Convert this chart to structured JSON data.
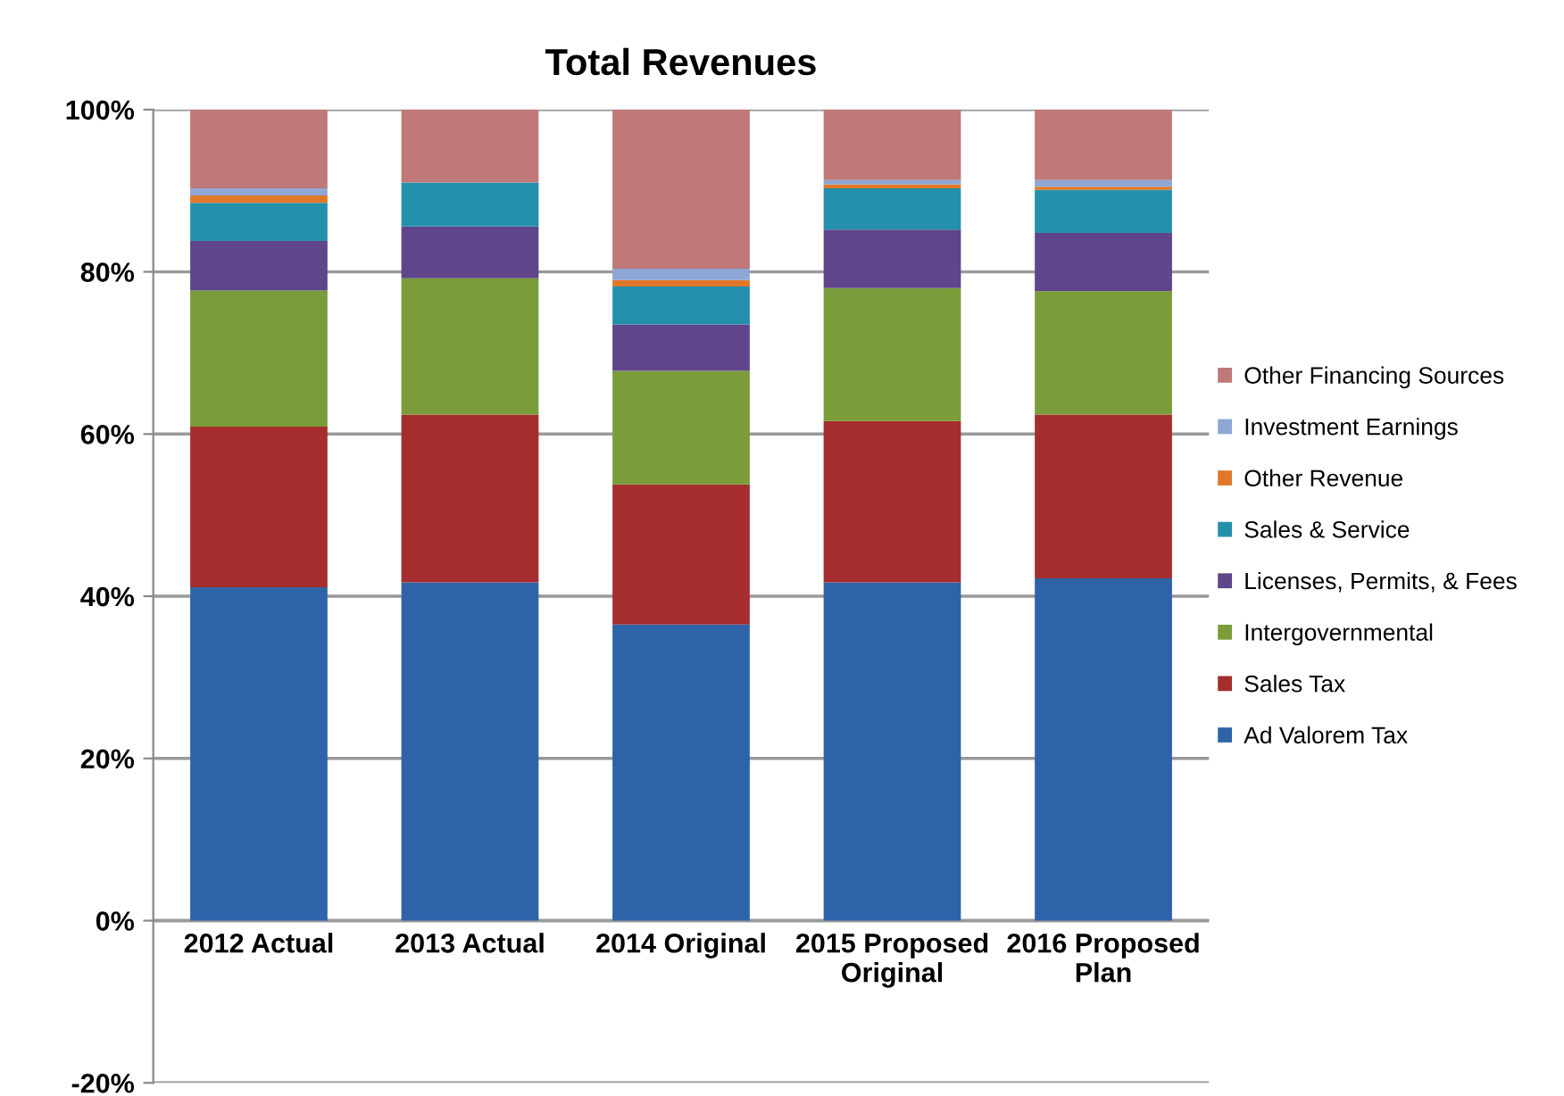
{
  "chart_data": {
    "type": "bar",
    "title": "Total Revenues",
    "stacked": true,
    "categories": [
      "2012 Actual",
      "2013 Actual",
      "2014 Original",
      "2015 Proposed\nOriginal",
      "2016 Proposed\nPlan"
    ],
    "series": [
      {
        "name": "Ad Valorem Tax",
        "color": "#2f63a8",
        "values": [
          41.1,
          41.7,
          36.5,
          41.7,
          42.2
        ]
      },
      {
        "name": "Sales Tax",
        "color": "#a52d2d",
        "values": [
          19.8,
          20.7,
          17.3,
          19.9,
          20.2
        ]
      },
      {
        "name": "Intergovernmental",
        "color": "#7a9c3a",
        "values": [
          16.8,
          16.8,
          14.0,
          16.4,
          15.2
        ]
      },
      {
        "name": "Licenses, Permits, & Fees",
        "color": "#5f4589",
        "values": [
          6.1,
          6.4,
          5.7,
          7.2,
          7.2
        ]
      },
      {
        "name": "Sales & Service",
        "color": "#2590ac",
        "values": [
          4.7,
          5.4,
          4.7,
          5.1,
          5.3
        ]
      },
      {
        "name": "Other Revenue",
        "color": "#e0782a",
        "values": [
          0.9,
          0,
          0.8,
          0.5,
          0.4
        ]
      },
      {
        "name": "Investment Earnings",
        "color": "#8ea7d6",
        "values": [
          0.9,
          0,
          1.4,
          0.5,
          0.8
        ]
      },
      {
        "name": "Other Financing Sources",
        "color": "#c07878",
        "values": [
          9.7,
          9.0,
          19.6,
          8.7,
          8.7
        ]
      }
    ],
    "ylim": [
      -20,
      100
    ],
    "yticks": [
      {
        "value": -20,
        "label": "-20%"
      },
      {
        "value": 0,
        "label": "0%"
      },
      {
        "value": 20,
        "label": "20%"
      },
      {
        "value": 40,
        "label": "40%"
      },
      {
        "value": 60,
        "label": "60%"
      },
      {
        "value": 80,
        "label": "80%"
      },
      {
        "value": 100,
        "label": "100%"
      }
    ],
    "grid": "y",
    "legend": "right"
  }
}
